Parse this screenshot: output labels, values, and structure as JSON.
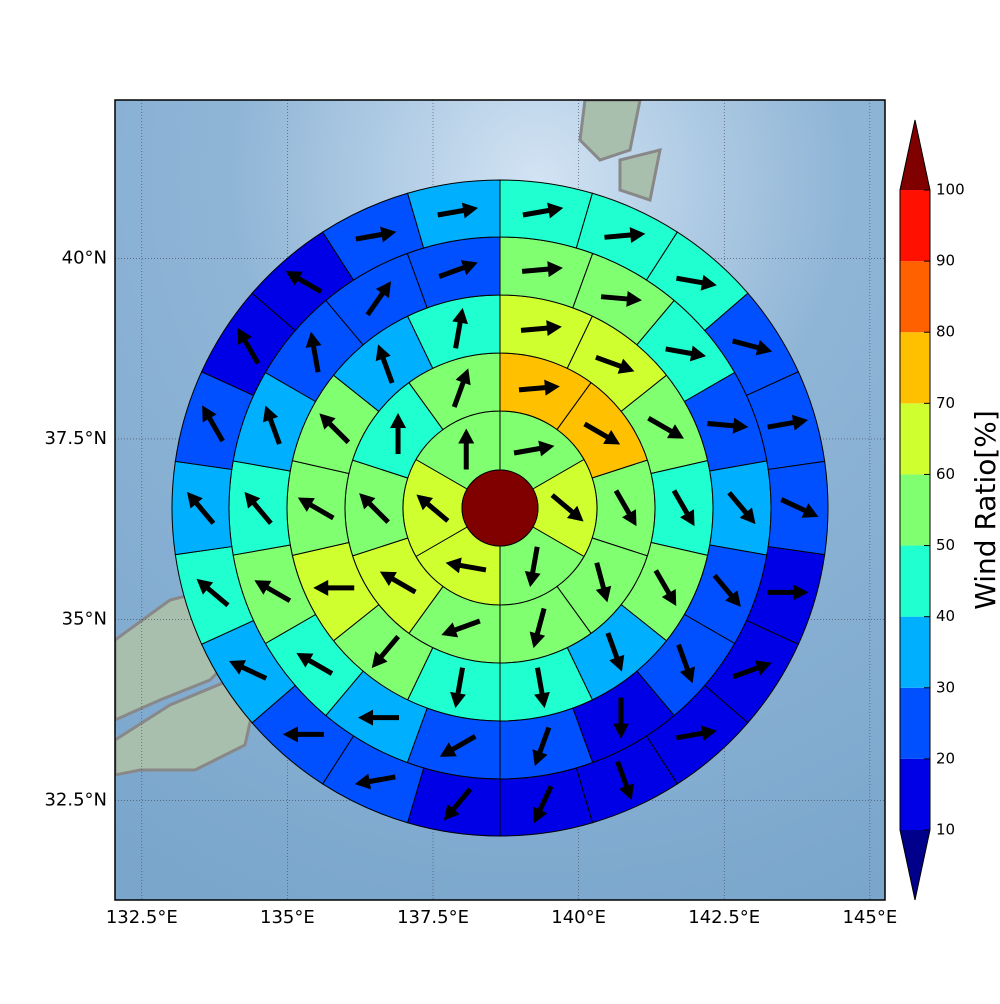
{
  "chart_data": {
    "type": "polar-sectors",
    "xlim": [
      132.04,
      145.26
    ],
    "ylim": [
      31.12,
      42.19
    ],
    "xticks": [
      {
        "value": 132.5,
        "label": "132.5°E"
      },
      {
        "value": 135,
        "label": "135°E"
      },
      {
        "value": 137.5,
        "label": "137.5°E"
      },
      {
        "value": 140,
        "label": "140°E"
      },
      {
        "value": 142.5,
        "label": "142.5°E"
      },
      {
        "value": 145,
        "label": "145°E"
      }
    ],
    "yticks": [
      {
        "value": 32.5,
        "label": "32.5°N"
      },
      {
        "value": 35,
        "label": "35°N"
      },
      {
        "value": 37.5,
        "label": "37.5°N"
      },
      {
        "value": 40,
        "label": "40°N"
      }
    ],
    "grid": true,
    "center_color": "#800000",
    "rings": [
      {
        "values": [
          55,
          65,
          55,
          65,
          65,
          55
        ],
        "directions": [
          80,
          130,
          190,
          280,
          310,
          0
        ]
      },
      {
        "values": [
          75,
          75,
          55,
          55,
          55,
          55,
          65,
          55,
          45,
          55
        ],
        "directions": [
          85,
          120,
          150,
          165,
          195,
          250,
          300,
          315,
          0,
          20
        ]
      },
      {
        "values": [
          65,
          65,
          55,
          45,
          55,
          35,
          45,
          45,
          55,
          65,
          55,
          55,
          35,
          45
        ],
        "directions": [
          85,
          110,
          120,
          150,
          150,
          160,
          170,
          190,
          220,
          270,
          300,
          315,
          340,
          10
        ]
      },
      {
        "values": [
          55,
          55,
          45,
          25,
          35,
          25,
          25,
          15,
          25,
          25,
          35,
          45,
          55,
          45,
          35,
          25,
          25,
          25
        ],
        "directions": [
          85,
          95,
          100,
          95,
          140,
          140,
          160,
          180,
          200,
          240,
          270,
          300,
          300,
          320,
          340,
          350,
          35,
          70
        ]
      },
      {
        "values": [
          45,
          45,
          45,
          25,
          25,
          25,
          15,
          15,
          15,
          15,
          15,
          15,
          25,
          25,
          35,
          45,
          35,
          25,
          15,
          15,
          25,
          35
        ],
        "directions": [
          80,
          85,
          100,
          105,
          80,
          115,
          90,
          70,
          80,
          160,
          205,
          220,
          260,
          270,
          295,
          310,
          320,
          330,
          330,
          300,
          80,
          80
        ]
      }
    ],
    "colorbar": {
      "label": "Wind Ratio[%]",
      "ticks": [
        10,
        20,
        30,
        40,
        50,
        60,
        70,
        80,
        90,
        100
      ],
      "colors": [
        "#0000e6",
        "#0050ff",
        "#00b0ff",
        "#20ffd0",
        "#80ff70",
        "#d0ff30",
        "#ffc000",
        "#ff6000",
        "#ff1000"
      ],
      "under_color": "#00008b",
      "over_color": "#800000"
    }
  }
}
